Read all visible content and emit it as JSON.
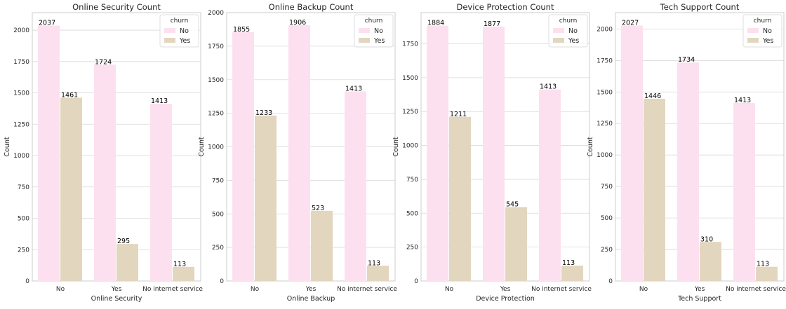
{
  "chart_data": [
    {
      "type": "bar",
      "title": "Online Security Count",
      "xlabel": "Online Security",
      "ylabel": "Count",
      "categories": [
        "No",
        "Yes",
        "No internet service"
      ],
      "series": [
        {
          "name": "No",
          "values": [
            2037,
            1724,
            1413
          ]
        },
        {
          "name": "Yes",
          "values": [
            1461,
            295,
            113
          ]
        }
      ],
      "ylim": [
        0,
        2140
      ],
      "yticks": [
        0,
        250,
        500,
        750,
        1000,
        1250,
        1500,
        1750,
        2000
      ],
      "legend": {
        "title": "churn",
        "placement": "top-right"
      }
    },
    {
      "type": "bar",
      "title": "Online Backup Count",
      "xlabel": "Online Backup",
      "ylabel": "Count",
      "categories": [
        "No",
        "Yes",
        "No internet service"
      ],
      "series": [
        {
          "name": "No",
          "values": [
            1855,
            1906,
            1413
          ]
        },
        {
          "name": "Yes",
          "values": [
            1233,
            523,
            113
          ]
        }
      ],
      "ylim": [
        0,
        2000
      ],
      "yticks": [
        0,
        250,
        500,
        750,
        1000,
        1250,
        1500,
        1750,
        2000
      ],
      "legend": {
        "title": "churn",
        "placement": "top-right"
      }
    },
    {
      "type": "bar",
      "title": "Device Protection Count",
      "xlabel": "Device Protection",
      "ylabel": "Count",
      "categories": [
        "No",
        "Yes",
        "No internet service"
      ],
      "series": [
        {
          "name": "No",
          "values": [
            1884,
            1877,
            1413
          ]
        },
        {
          "name": "Yes",
          "values": [
            1211,
            545,
            113
          ]
        }
      ],
      "ylim": [
        0,
        1980
      ],
      "yticks": [
        0,
        250,
        500,
        750,
        1000,
        1250,
        1500,
        1750
      ],
      "legend": {
        "title": "churn",
        "placement": "top-right"
      }
    },
    {
      "type": "bar",
      "title": "Tech Support Count",
      "xlabel": "Tech Support",
      "ylabel": "Count",
      "categories": [
        "No",
        "Yes",
        "No internet service"
      ],
      "series": [
        {
          "name": "No",
          "values": [
            2027,
            1734,
            1413
          ]
        },
        {
          "name": "Yes",
          "values": [
            1446,
            310,
            113
          ]
        }
      ],
      "ylim": [
        0,
        2130
      ],
      "yticks": [
        0,
        250,
        500,
        750,
        1000,
        1250,
        1500,
        1750,
        2000
      ],
      "legend": {
        "title": "churn",
        "placement": "top-right"
      }
    }
  ],
  "colors": {
    "No": "#fde0ef",
    "Yes": "#e3d6bf",
    "grid": "#d9d9d9",
    "spine": "#cccccc"
  }
}
